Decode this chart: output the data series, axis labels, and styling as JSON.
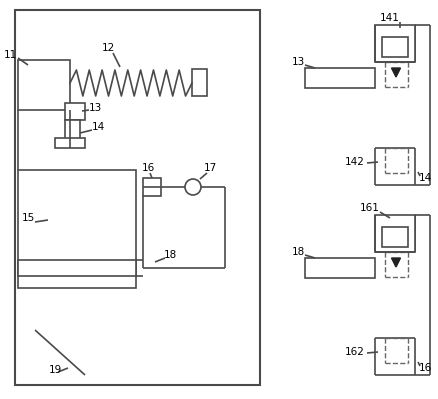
{
  "bg_color": "#ffffff",
  "line_color": "#4a4a4a",
  "dashed_color": "#666666",
  "figsize": [
    4.38,
    3.99
  ],
  "dpi": 100
}
